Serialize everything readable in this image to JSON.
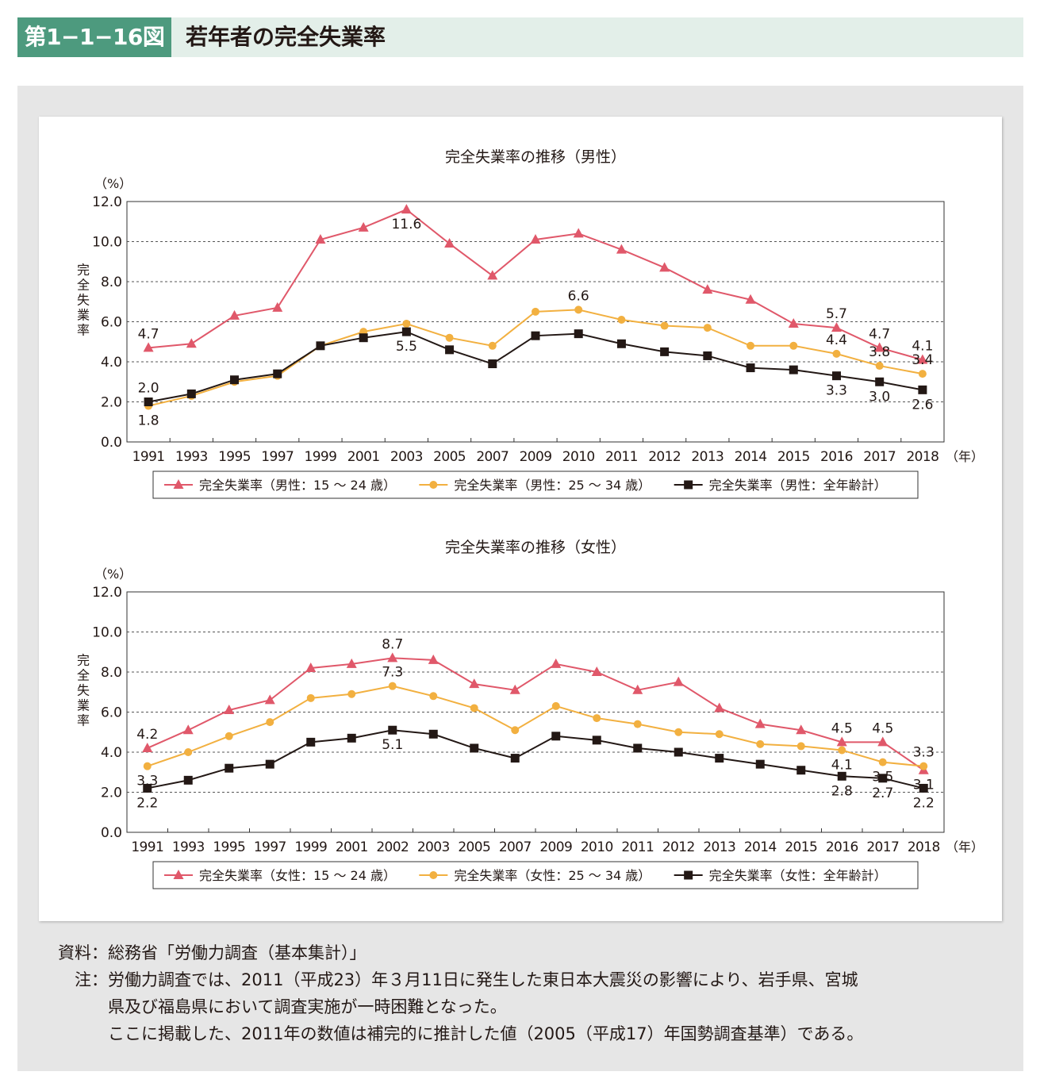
{
  "header": {
    "figure_label": "第1−1−16図",
    "title": "若年者の完全失業率"
  },
  "colors": {
    "young": "#e0586a",
    "mid": "#f2b040",
    "all": "#231815",
    "header_accent": "#4d9a7e",
    "header_bg": "#e3efe9",
    "panel_bg": "#e6e6e6"
  },
  "chart_data": [
    {
      "type": "line",
      "title": "完全失業率の推移（男性）",
      "unit_label": "（%）",
      "ylabel": "完全失業率",
      "x_unit": "（年）",
      "ylim": [
        0,
        12
      ],
      "yticks": [
        "0.0",
        "2.0",
        "4.0",
        "6.0",
        "8.0",
        "10.0",
        "12.0"
      ],
      "grid": "dashed horizontal",
      "legend_position": "bottom",
      "categories": [
        "1991",
        "1993",
        "1995",
        "1997",
        "1999",
        "2001",
        "2003",
        "2005",
        "2007",
        "2009",
        "2010",
        "2011",
        "2012",
        "2013",
        "2014",
        "2015",
        "2016",
        "2017",
        "2018"
      ],
      "series": [
        {
          "name": "完全失業率（男性：15 ～ 24 歳）",
          "marker": "triangle",
          "color": "#e0586a",
          "values": [
            4.7,
            4.9,
            6.3,
            6.7,
            10.1,
            10.7,
            11.6,
            9.9,
            8.3,
            10.1,
            10.4,
            9.6,
            8.7,
            7.6,
            7.1,
            5.9,
            5.7,
            4.7,
            4.1
          ],
          "labels": [
            {
              "index": 0,
              "text": "4.7",
              "pos": "above"
            },
            {
              "index": 6,
              "text": "11.6",
              "pos": "below"
            },
            {
              "index": 16,
              "text": "5.7",
              "pos": "above"
            },
            {
              "index": 17,
              "text": "4.7",
              "pos": "above"
            },
            {
              "index": 18,
              "text": "4.1",
              "pos": "above"
            }
          ]
        },
        {
          "name": "完全失業率（男性：25 ～ 34 歳）",
          "marker": "circle",
          "color": "#f2b040",
          "values": [
            1.8,
            2.3,
            3.0,
            3.3,
            4.8,
            5.5,
            5.9,
            5.2,
            4.8,
            6.5,
            6.6,
            6.1,
            5.8,
            5.7,
            4.8,
            4.8,
            4.4,
            3.8,
            3.4
          ],
          "labels": [
            {
              "index": 0,
              "text": "1.8",
              "pos": "below"
            },
            {
              "index": 10,
              "text": "6.6",
              "pos": "above"
            },
            {
              "index": 16,
              "text": "4.4",
              "pos": "above"
            },
            {
              "index": 17,
              "text": "3.8",
              "pos": "above"
            },
            {
              "index": 18,
              "text": "3.4",
              "pos": "above"
            }
          ]
        },
        {
          "name": "完全失業率（男性：全年齢計）",
          "marker": "square",
          "color": "#231815",
          "values": [
            2.0,
            2.4,
            3.1,
            3.4,
            4.8,
            5.2,
            5.5,
            4.6,
            3.9,
            5.3,
            5.4,
            4.9,
            4.5,
            4.3,
            3.7,
            3.6,
            3.3,
            3.0,
            2.6
          ],
          "labels": [
            {
              "index": 0,
              "text": "2.0",
              "pos": "above"
            },
            {
              "index": 6,
              "text": "5.5",
              "pos": "below"
            },
            {
              "index": 16,
              "text": "3.3",
              "pos": "below"
            },
            {
              "index": 17,
              "text": "3.0",
              "pos": "below"
            },
            {
              "index": 18,
              "text": "2.6",
              "pos": "below"
            }
          ]
        }
      ]
    },
    {
      "type": "line",
      "title": "完全失業率の推移（女性）",
      "unit_label": "（%）",
      "ylabel": "完全失業率",
      "x_unit": "（年）",
      "ylim": [
        0,
        12
      ],
      "yticks": [
        "0.0",
        "2.0",
        "4.0",
        "6.0",
        "8.0",
        "10.0",
        "12.0"
      ],
      "grid": "dashed horizontal",
      "legend_position": "bottom",
      "categories": [
        "1991",
        "1993",
        "1995",
        "1997",
        "1999",
        "2001",
        "2002",
        "2003",
        "2005",
        "2007",
        "2009",
        "2010",
        "2011",
        "2012",
        "2013",
        "2014",
        "2015",
        "2016",
        "2017",
        "2018"
      ],
      "point_categories": [
        "1991",
        "1993",
        "1995",
        "1997",
        "1999",
        "2001",
        "2002",
        "2003",
        "2005",
        "2007",
        "2009",
        "2010",
        "2011",
        "2012",
        "2013",
        "2014",
        "2015",
        "2016",
        "2017",
        "2018"
      ],
      "series": [
        {
          "name": "完全失業率（女性：15 ～ 24 歳）",
          "marker": "triangle",
          "color": "#e0586a",
          "values": [
            4.2,
            5.1,
            6.1,
            6.6,
            8.2,
            8.4,
            8.7,
            8.6,
            7.4,
            7.1,
            8.4,
            8.0,
            7.1,
            7.5,
            6.2,
            5.4,
            5.1,
            4.5,
            4.5,
            3.1
          ],
          "labels": [
            {
              "index": 0,
              "text": "4.2",
              "pos": "above"
            },
            {
              "index": 6,
              "text": "8.7",
              "pos": "above"
            },
            {
              "index": 17,
              "text": "4.5",
              "pos": "above"
            },
            {
              "index": 18,
              "text": "4.5",
              "pos": "above"
            },
            {
              "index": 19,
              "text": "3.1",
              "pos": "below"
            }
          ]
        },
        {
          "name": "完全失業率（女性：25 ～ 34 歳）",
          "marker": "circle",
          "color": "#f2b040",
          "values": [
            3.3,
            4.0,
            4.8,
            5.5,
            6.7,
            6.9,
            7.3,
            6.8,
            6.2,
            5.1,
            6.3,
            5.7,
            5.4,
            5.0,
            4.9,
            4.4,
            4.3,
            4.1,
            3.5,
            3.3
          ],
          "labels": [
            {
              "index": 0,
              "text": "3.3",
              "pos": "below"
            },
            {
              "index": 6,
              "text": "7.3",
              "pos": "above"
            },
            {
              "index": 17,
              "text": "4.1",
              "pos": "below"
            },
            {
              "index": 18,
              "text": "3.5",
              "pos": "below"
            },
            {
              "index": 19,
              "text": "3.3",
              "pos": "above"
            }
          ]
        },
        {
          "name": "完全失業率（女性：全年齢計）",
          "marker": "square",
          "color": "#231815",
          "values": [
            2.2,
            2.6,
            3.2,
            3.4,
            4.5,
            4.7,
            5.1,
            4.9,
            4.2,
            3.7,
            4.8,
            4.6,
            4.2,
            4.0,
            3.7,
            3.4,
            3.1,
            2.8,
            2.7,
            2.2
          ],
          "labels": [
            {
              "index": 0,
              "text": "2.2",
              "pos": "below"
            },
            {
              "index": 6,
              "text": "5.1",
              "pos": "below"
            },
            {
              "index": 17,
              "text": "2.8",
              "pos": "below"
            },
            {
              "index": 18,
              "text": "2.7",
              "pos": "below"
            },
            {
              "index": 19,
              "text": "2.2",
              "pos": "below"
            }
          ]
        }
      ]
    }
  ],
  "notes": {
    "source_key": "資料：",
    "source_text": "総務省「労働力調査（基本集計）」",
    "note_key": "注：",
    "note_lines": [
      "労働力調査では、2011（平成23）年３月11日に発生した東日本大震災の影響により、岩手県、宮城",
      "県及び福島県において調査実施が一時困難となった。",
      "ここに掲載した、2011年の数値は補完的に推計した値（2005（平成17）年国勢調査基準）である。"
    ]
  }
}
